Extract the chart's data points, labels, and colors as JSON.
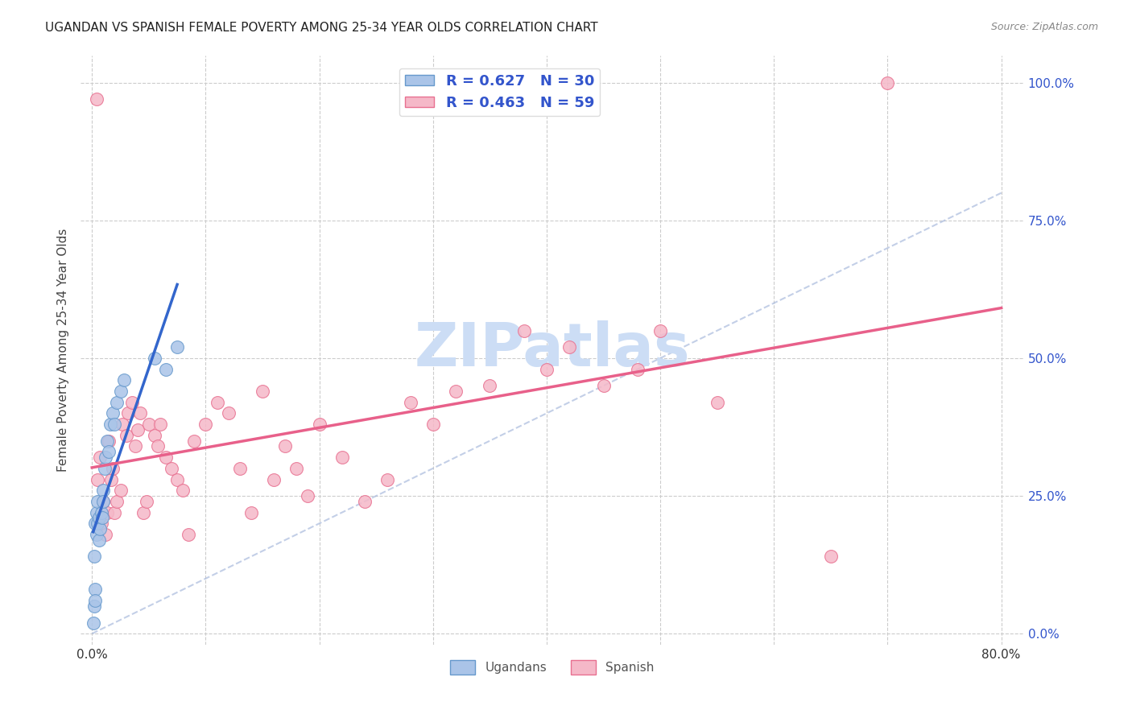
{
  "title": "UGANDAN VS SPANISH FEMALE POVERTY AMONG 25-34 YEAR OLDS CORRELATION CHART",
  "source": "Source: ZipAtlas.com",
  "ylabel": "Female Poverty Among 25-34 Year Olds",
  "xlim": [
    -0.01,
    0.82
  ],
  "ylim": [
    -0.02,
    1.05
  ],
  "ytick_positions_right": [
    0.0,
    0.25,
    0.5,
    0.75,
    1.0
  ],
  "R_ugandan": 0.627,
  "N_ugandan": 30,
  "R_spanish": 0.463,
  "N_spanish": 59,
  "ugandan_color": "#aac4e8",
  "ugandan_edge_color": "#6699cc",
  "ugandan_line_color": "#3366cc",
  "spanish_color": "#f5b8c8",
  "spanish_edge_color": "#e87090",
  "spanish_line_color": "#e8608a",
  "legend_text_color": "#3355cc",
  "watermark_color": "#ccddf5",
  "background_color": "#ffffff",
  "ugandan_x": [
    0.001,
    0.002,
    0.002,
    0.003,
    0.003,
    0.004,
    0.004,
    0.005,
    0.005,
    0.006,
    0.006,
    0.007,
    0.008,
    0.009,
    0.01,
    0.01,
    0.011,
    0.012,
    0.013,
    0.015,
    0.016,
    0.018,
    0.02,
    0.022,
    0.025,
    0.028,
    0.055,
    0.065,
    0.075,
    0.003
  ],
  "ugandan_y": [
    0.02,
    0.14,
    0.05,
    0.08,
    0.2,
    0.18,
    0.22,
    0.24,
    0.2,
    0.17,
    0.21,
    0.19,
    0.22,
    0.21,
    0.26,
    0.24,
    0.3,
    0.32,
    0.35,
    0.33,
    0.38,
    0.4,
    0.38,
    0.42,
    0.44,
    0.46,
    0.5,
    0.48,
    0.52,
    0.06
  ],
  "spanish_x": [
    0.004,
    0.005,
    0.007,
    0.008,
    0.01,
    0.012,
    0.013,
    0.015,
    0.017,
    0.018,
    0.02,
    0.022,
    0.025,
    0.027,
    0.03,
    0.032,
    0.035,
    0.038,
    0.04,
    0.042,
    0.045,
    0.048,
    0.05,
    0.055,
    0.058,
    0.06,
    0.065,
    0.07,
    0.075,
    0.08,
    0.085,
    0.09,
    0.1,
    0.11,
    0.12,
    0.13,
    0.14,
    0.15,
    0.16,
    0.17,
    0.18,
    0.19,
    0.2,
    0.22,
    0.24,
    0.26,
    0.28,
    0.3,
    0.32,
    0.35,
    0.38,
    0.4,
    0.42,
    0.45,
    0.48,
    0.5,
    0.55,
    0.65,
    0.7
  ],
  "spanish_y": [
    0.97,
    0.28,
    0.32,
    0.2,
    0.24,
    0.18,
    0.22,
    0.35,
    0.28,
    0.3,
    0.22,
    0.24,
    0.26,
    0.38,
    0.36,
    0.4,
    0.42,
    0.34,
    0.37,
    0.4,
    0.22,
    0.24,
    0.38,
    0.36,
    0.34,
    0.38,
    0.32,
    0.3,
    0.28,
    0.26,
    0.18,
    0.35,
    0.38,
    0.42,
    0.4,
    0.3,
    0.22,
    0.44,
    0.28,
    0.34,
    0.3,
    0.25,
    0.38,
    0.32,
    0.24,
    0.28,
    0.42,
    0.38,
    0.44,
    0.45,
    0.55,
    0.48,
    0.52,
    0.45,
    0.48,
    0.55,
    0.42,
    0.14,
    1.0
  ]
}
